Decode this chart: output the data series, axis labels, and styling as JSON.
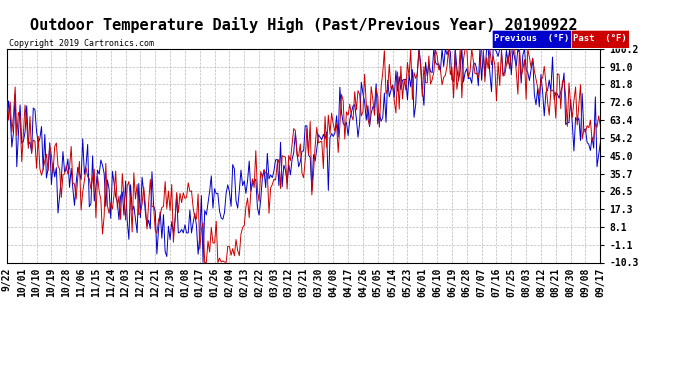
{
  "title": "Outdoor Temperature Daily High (Past/Previous Year) 20190922",
  "copyright": "Copyright 2019 Cartronics.com",
  "yticks": [
    100.2,
    91.0,
    81.8,
    72.6,
    63.4,
    54.2,
    45.0,
    35.7,
    26.5,
    17.3,
    8.1,
    -1.1,
    -10.3
  ],
  "ymin": -10.3,
  "ymax": 100.2,
  "legend_blue_label": "Previous  (°F)",
  "legend_red_label": "Past  (°F)",
  "line_blue_color": "#0000cc",
  "line_red_color": "#cc0000",
  "background_color": "#ffffff",
  "grid_color": "#bbbbbb",
  "title_fontsize": 11,
  "tick_fontsize": 7,
  "xtick_labels": [
    "9/22",
    "10/01",
    "10/10",
    "10/19",
    "10/28",
    "11/06",
    "11/15",
    "11/24",
    "12/03",
    "12/12",
    "12/21",
    "12/30",
    "01/08",
    "01/17",
    "01/26",
    "02/04",
    "02/13",
    "02/22",
    "03/03",
    "03/12",
    "03/21",
    "03/30",
    "04/08",
    "04/17",
    "04/26",
    "05/05",
    "05/14",
    "05/23",
    "06/01",
    "06/10",
    "06/19",
    "06/28",
    "07/07",
    "07/16",
    "07/25",
    "08/03",
    "08/12",
    "08/21",
    "08/30",
    "09/08",
    "09/17"
  ],
  "n_points": 361
}
